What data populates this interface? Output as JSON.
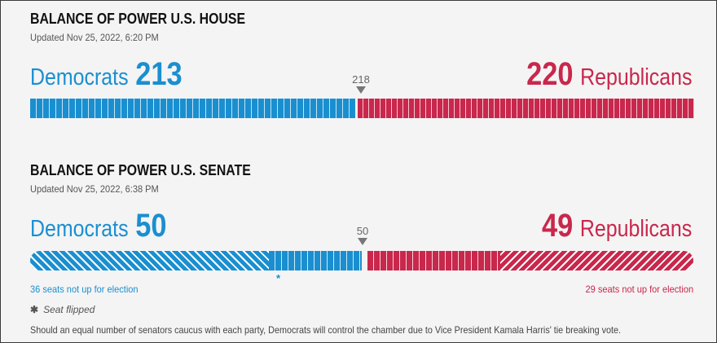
{
  "house": {
    "title": "BALANCE OF POWER U.S. HOUSE",
    "updated": "Updated Nov 25, 2022, 6:20 PM",
    "dem_label": "Democrats",
    "dem_seats": "213",
    "rep_label": "Republicans",
    "rep_seats": "220",
    "majority_label": "218",
    "total_seats": 435,
    "colors": {
      "dem": "#1a8fd0",
      "rep": "#c9274c"
    }
  },
  "senate": {
    "title": "BALANCE OF POWER U.S. SENATE",
    "updated": "Updated Nov 25, 2022, 6:38 PM",
    "dem_label": "Democrats",
    "dem_seats": "50",
    "rep_label": "Republicans",
    "rep_seats": "49",
    "majority_label": "50",
    "total_seats": 100,
    "dem_not_up": 36,
    "rep_not_up": 29,
    "dem_note": "36 seats not up for election",
    "rep_note": "29 seats not up for election",
    "flipped_marker": "*",
    "colors": {
      "dem": "#1a8fd0",
      "rep": "#c9274c"
    }
  },
  "legend": {
    "star": "✱",
    "label": "Seat flipped"
  },
  "footnote": "Should an equal number of senators caucus with each party, Democrats will control the chamber due to Vice President Kamala Harris' tie breaking vote."
}
